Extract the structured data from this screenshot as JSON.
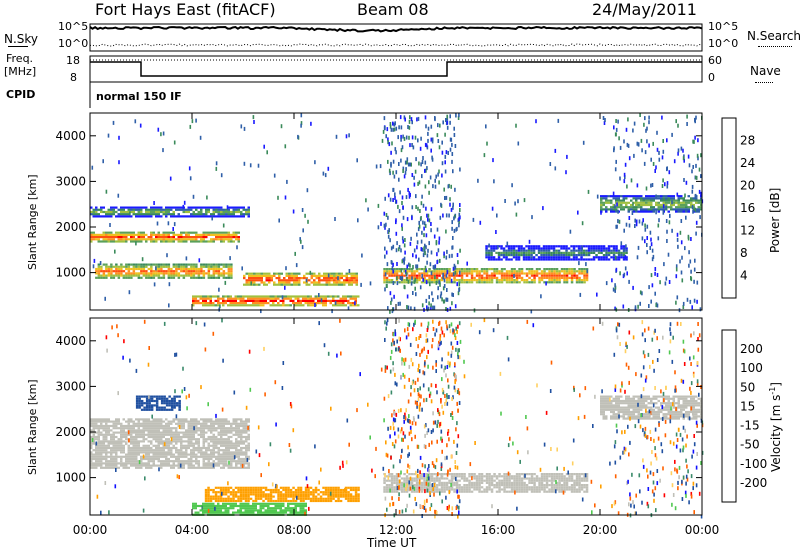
{
  "header": {
    "station": "Fort Hays East (fitACF)",
    "beam": "Beam 08",
    "date": "24/May/2011"
  },
  "noise_panel": {
    "left_label": "N.Sky",
    "right_label": "N.Search",
    "left_ticks": [
      "10^5",
      "10^0"
    ],
    "right_ticks": [
      "10^5",
      "10^0"
    ]
  },
  "freq_panel": {
    "left_label_1": "Freq.",
    "left_label_2": "[MHz]",
    "right_label": "Nave",
    "left_ticks": [
      "18",
      "8"
    ],
    "right_ticks": [
      "60",
      "0"
    ]
  },
  "cpid": {
    "label": "CPID",
    "value": "normal 150 IF"
  },
  "colors": {
    "power_scale": [
      "#1a1aff",
      "#2f5fa8",
      "#3a8a5a",
      "#5aa05a",
      "#a0c040",
      "#f0c020",
      "#ff9020",
      "#ff5010",
      "#ff0000"
    ],
    "velocity_scale": [
      "#ff0000",
      "#ff6000",
      "#ffa000",
      "#ffd060",
      "#c0c0b8",
      "#50c850",
      "#3a8a6a",
      "#2050a0",
      "#1010ff"
    ]
  },
  "chart_data": [
    {
      "type": "heatmap",
      "name": "power",
      "ylabel": "Slant Range [km]",
      "yticks": [
        "1000",
        "2000",
        "3000",
        "4000"
      ],
      "ylim": [
        180,
        4500
      ],
      "xlim": [
        "00:00",
        "24:00"
      ],
      "colorbar_label": "Power [dB]",
      "colorbar_ticks": [
        "4",
        "8",
        "12",
        "16",
        "20",
        "24",
        "28"
      ],
      "colorbar_range": [
        0,
        30
      ],
      "features": [
        {
          "x": [
            0.0,
            5.8
          ],
          "y": [
            1700,
            1900
          ],
          "peak": 26
        },
        {
          "x": [
            0.2,
            5.5
          ],
          "y": [
            900,
            1200
          ],
          "peak": 24
        },
        {
          "x": [
            0.0,
            6.2
          ],
          "y": [
            2250,
            2450
          ],
          "peak": 14
        },
        {
          "x": [
            4.0,
            10.5
          ],
          "y": [
            300,
            500
          ],
          "peak": 28
        },
        {
          "x": [
            6.0,
            10.5
          ],
          "y": [
            750,
            1000
          ],
          "peak": 27
        },
        {
          "x": [
            11.5,
            19.5
          ],
          "y": [
            800,
            1100
          ],
          "peak": 26
        },
        {
          "x": [
            15.5,
            21.0
          ],
          "y": [
            1300,
            1600
          ],
          "peak": 10
        },
        {
          "x": [
            20.0,
            24.0
          ],
          "y": [
            2350,
            2700
          ],
          "peak": 16
        }
      ]
    },
    {
      "type": "heatmap",
      "name": "velocity",
      "ylabel": "Slant Range [km]",
      "yticks": [
        "1000",
        "2000",
        "3000",
        "4000"
      ],
      "ylim": [
        180,
        4500
      ],
      "xlim": [
        "00:00",
        "24:00"
      ],
      "xticks": [
        "00:00",
        "04:00",
        "08:00",
        "12:00",
        "16:00",
        "20:00",
        "00:00"
      ],
      "xlabel": "Time UT",
      "colorbar_label": "Velocity [m s-1]",
      "colorbar_ticks": [
        "200",
        "100",
        "50",
        "15",
        "-15",
        "-50",
        "-100",
        "-200"
      ],
      "features": [
        {
          "x": [
            0.0,
            6.2
          ],
          "y": [
            1200,
            2300
          ],
          "value": 0
        },
        {
          "x": [
            11.5,
            19.5
          ],
          "y": [
            700,
            1100
          ],
          "value": 0
        },
        {
          "x": [
            20.0,
            24.0
          ],
          "y": [
            2300,
            2800
          ],
          "value": 0
        },
        {
          "x": [
            1.8,
            3.5
          ],
          "y": [
            2500,
            2800
          ],
          "value": 180
        },
        {
          "x": [
            4.0,
            8.5
          ],
          "y": [
            200,
            450
          ],
          "value": 40
        },
        {
          "x": [
            4.5,
            10.5
          ],
          "y": [
            500,
            800
          ],
          "value": -60
        }
      ]
    }
  ]
}
